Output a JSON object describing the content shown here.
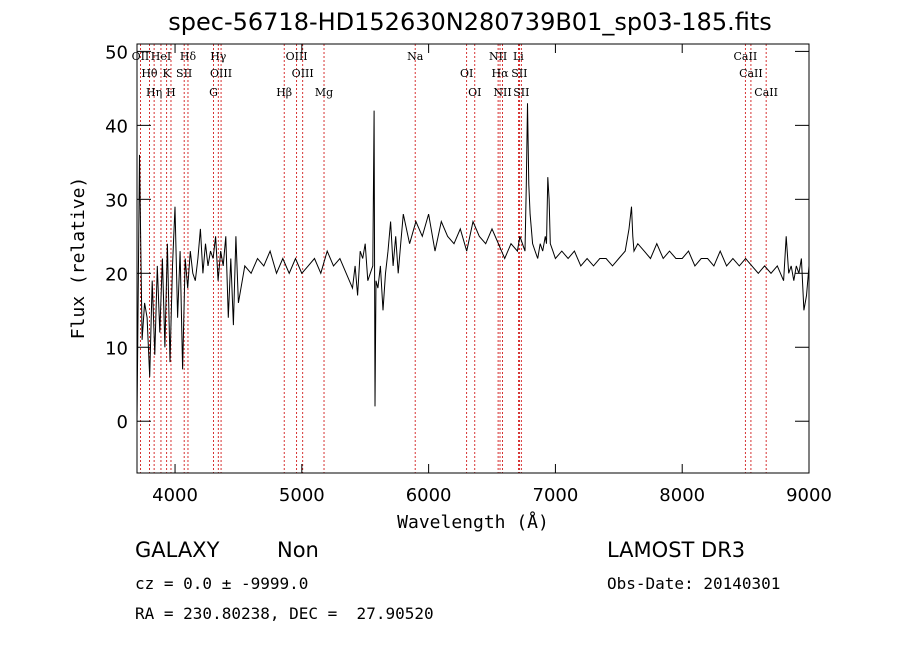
{
  "chart_data": {
    "type": "line",
    "title": "spec-56718-HD152630N280739B01_sp03-185.fits",
    "xlabel": "Wavelength (Å)",
    "ylabel": "Flux (relative)",
    "xlim": [
      3700,
      9000
    ],
    "ylim": [
      -7,
      51
    ],
    "x_ticks": [
      4000,
      5000,
      6000,
      7000,
      8000,
      9000
    ],
    "y_ticks": [
      0,
      10,
      20,
      30,
      40,
      50
    ],
    "grid": false,
    "series": [
      {
        "x": [
          3700,
          3720,
          3740,
          3760,
          3780,
          3800,
          3820,
          3840,
          3860,
          3880,
          3900,
          3920,
          3940,
          3960,
          3980,
          4000,
          4020,
          4040,
          4060,
          4080,
          4100,
          4120,
          4140,
          4160,
          4180,
          4200,
          4220,
          4240,
          4260,
          4280,
          4300,
          4320,
          4340,
          4360,
          4380,
          4400,
          4420,
          4440,
          4460,
          4480,
          4500,
          4550,
          4600,
          4650,
          4700,
          4750,
          4800,
          4850,
          4900,
          4950,
          5000,
          5050,
          5100,
          5150,
          5200,
          5250,
          5300,
          5350,
          5400,
          5420,
          5440,
          5460,
          5480,
          5500,
          5520,
          5540,
          5560,
          5570,
          5577,
          5585,
          5600,
          5620,
          5640,
          5660,
          5680,
          5700,
          5720,
          5740,
          5760,
          5780,
          5800,
          5850,
          5900,
          5950,
          6000,
          6050,
          6100,
          6150,
          6200,
          6250,
          6300,
          6350,
          6400,
          6450,
          6500,
          6550,
          6600,
          6650,
          6700,
          6720,
          6740,
          6760,
          6770,
          6780,
          6790,
          6800,
          6820,
          6840,
          6860,
          6880,
          6900,
          6920,
          6930,
          6940,
          6950,
          6960,
          6980,
          7000,
          7050,
          7100,
          7150,
          7200,
          7250,
          7300,
          7350,
          7400,
          7450,
          7500,
          7550,
          7580,
          7600,
          7610,
          7620,
          7650,
          7700,
          7750,
          7800,
          7850,
          7900,
          7950,
          8000,
          8050,
          8100,
          8150,
          8200,
          8250,
          8300,
          8350,
          8400,
          8450,
          8500,
          8550,
          8600,
          8650,
          8700,
          8750,
          8800,
          8820,
          8840,
          8860,
          8880,
          8900,
          8920,
          8940,
          8960,
          8980,
          9000
        ],
        "values": [
          0,
          36,
          11,
          16,
          14,
          6,
          19,
          9,
          21,
          12,
          22,
          10,
          24,
          8,
          21,
          29,
          14,
          23,
          7,
          22,
          18,
          23,
          20,
          19,
          22,
          26,
          20,
          24,
          21,
          23,
          22,
          25,
          19,
          23,
          21,
          25,
          14,
          22,
          13,
          25,
          16,
          21,
          20,
          22,
          21,
          23,
          20,
          22,
          20,
          22,
          20,
          21,
          22,
          20,
          23,
          21,
          22,
          20,
          18,
          21,
          17,
          23,
          22,
          24,
          19,
          20,
          21,
          42,
          2,
          19,
          18,
          21,
          15,
          20,
          23,
          27,
          21,
          25,
          20,
          24,
          28,
          24,
          27,
          25,
          28,
          23,
          27,
          25,
          24,
          26,
          23,
          27,
          25,
          24,
          26,
          24,
          22,
          24,
          23,
          25,
          24,
          23,
          32,
          43,
          32,
          28,
          24,
          23,
          22,
          24,
          23,
          25,
          24,
          33,
          30,
          24,
          23,
          22,
          23,
          22,
          23,
          21,
          22,
          21,
          22,
          22,
          21,
          22,
          23,
          26,
          29,
          25,
          23,
          24,
          23,
          22,
          24,
          22,
          23,
          22,
          22,
          23,
          21,
          22,
          22,
          21,
          23,
          21,
          22,
          21,
          22,
          21,
          20,
          21,
          20,
          21,
          19,
          25,
          20,
          21,
          19,
          21,
          20,
          22,
          15,
          17,
          21
        ]
      }
    ],
    "line_labels": [
      {
        "label": "OII",
        "x": 3727
      },
      {
        "label": "Hθ",
        "x": 3798
      },
      {
        "label": "Hη",
        "x": 3835
      },
      {
        "label": "HeI",
        "x": 3889
      },
      {
        "label": "K",
        "x": 3934
      },
      {
        "label": "H",
        "x": 3968
      },
      {
        "label": "Hδ",
        "x": 4102
      },
      {
        "label": "SII",
        "x": 4072
      },
      {
        "label": "G",
        "x": 4304
      },
      {
        "label": "Hγ",
        "x": 4341
      },
      {
        "label": "OIII",
        "x": 4363
      },
      {
        "label": "Hβ",
        "x": 4861
      },
      {
        "label": "OIII",
        "x": 4959
      },
      {
        "label": "OIII",
        "x": 5007
      },
      {
        "label": "Mg",
        "x": 5175
      },
      {
        "label": "Na",
        "x": 5894
      },
      {
        "label": "OI",
        "x": 6300
      },
      {
        "label": "OI",
        "x": 6364
      },
      {
        "label": "NII",
        "x": 6548
      },
      {
        "label": "Hα",
        "x": 6563
      },
      {
        "label": "NII",
        "x": 6583
      },
      {
        "label": "Li",
        "x": 6708
      },
      {
        "label": "SII",
        "x": 6716
      },
      {
        "label": "SII",
        "x": 6731
      },
      {
        "label": "CaII",
        "x": 8498
      },
      {
        "label": "CaII",
        "x": 8542
      },
      {
        "label": "CaII",
        "x": 8662
      }
    ]
  },
  "footer": {
    "class_label": "GALAXY",
    "subclass_label": "Non",
    "survey_label": "LAMOST DR3",
    "cz_text": "cz = 0.0 ± -9999.0",
    "obs_date_text": "Obs-Date: 20140301",
    "coords_text": "RA = 230.80238, DEC =  27.90520"
  }
}
